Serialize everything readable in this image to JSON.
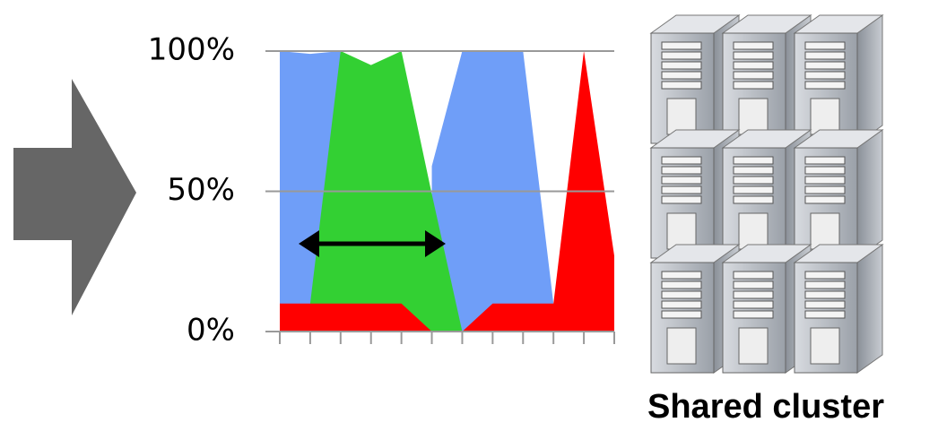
{
  "chart_data": {
    "type": "area",
    "caption": "Shared cluster",
    "x": [
      0,
      1,
      2,
      3,
      4,
      5,
      6,
      7,
      8,
      9,
      10,
      11
    ],
    "xlim": [
      0,
      11
    ],
    "ylim": [
      0,
      100
    ],
    "yticks": [
      {
        "value": 0,
        "label": "0%"
      },
      {
        "value": 50,
        "label": "50%"
      },
      {
        "value": 100,
        "label": "100%"
      }
    ],
    "grid": true,
    "series": [
      {
        "color": "#6f9ef8",
        "values": [
          100,
          99,
          100,
          null,
          null,
          59,
          100,
          100,
          100,
          10,
          null,
          null
        ]
      },
      {
        "color": "#33d033",
        "values": [
          null,
          10,
          100,
          95,
          100,
          49,
          0,
          null,
          null,
          null,
          null,
          null
        ]
      },
      {
        "color": "#ff0000",
        "values": [
          10,
          10,
          10,
          10,
          10,
          0,
          0,
          10,
          10,
          10,
          100,
          27
        ]
      }
    ]
  }
}
